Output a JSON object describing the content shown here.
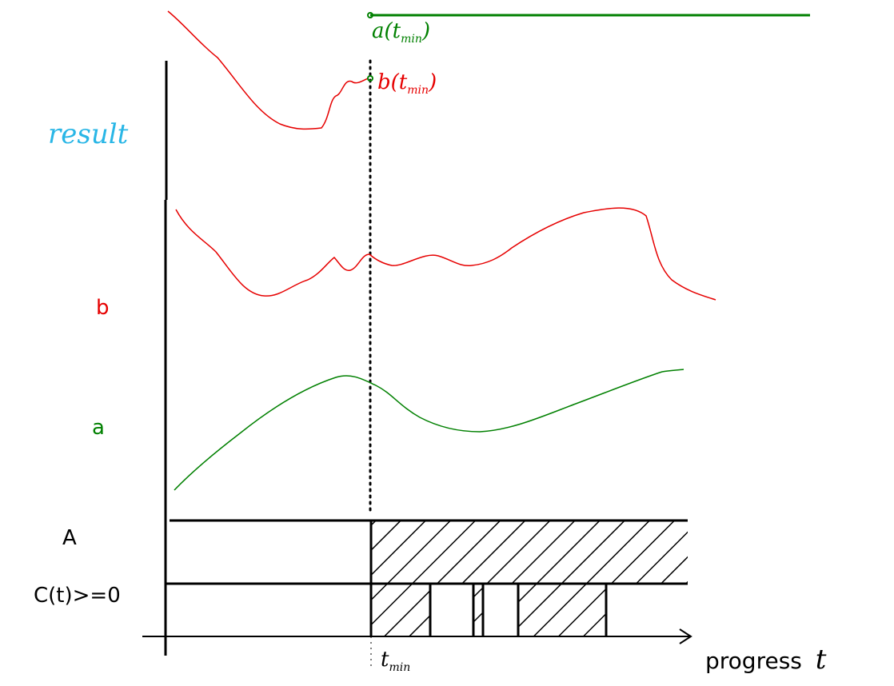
{
  "labels": {
    "result": "result",
    "b": "b",
    "a": "a",
    "A": "A",
    "c_condition": "C(t)>=0",
    "progress": "progress",
    "t": "t",
    "t_min": "t",
    "t_min_sub": "min",
    "a_tmin": "a(t",
    "a_tmin_sub": "min",
    "a_tmin_close": ")",
    "b_tmin": "b(t",
    "b_tmin_sub": "min",
    "b_tmin_close": ")"
  },
  "colors": {
    "result_label": "#29b6e6",
    "a_curve": "#008000",
    "b_curve": "#e60000",
    "axis": "#000000"
  }
}
